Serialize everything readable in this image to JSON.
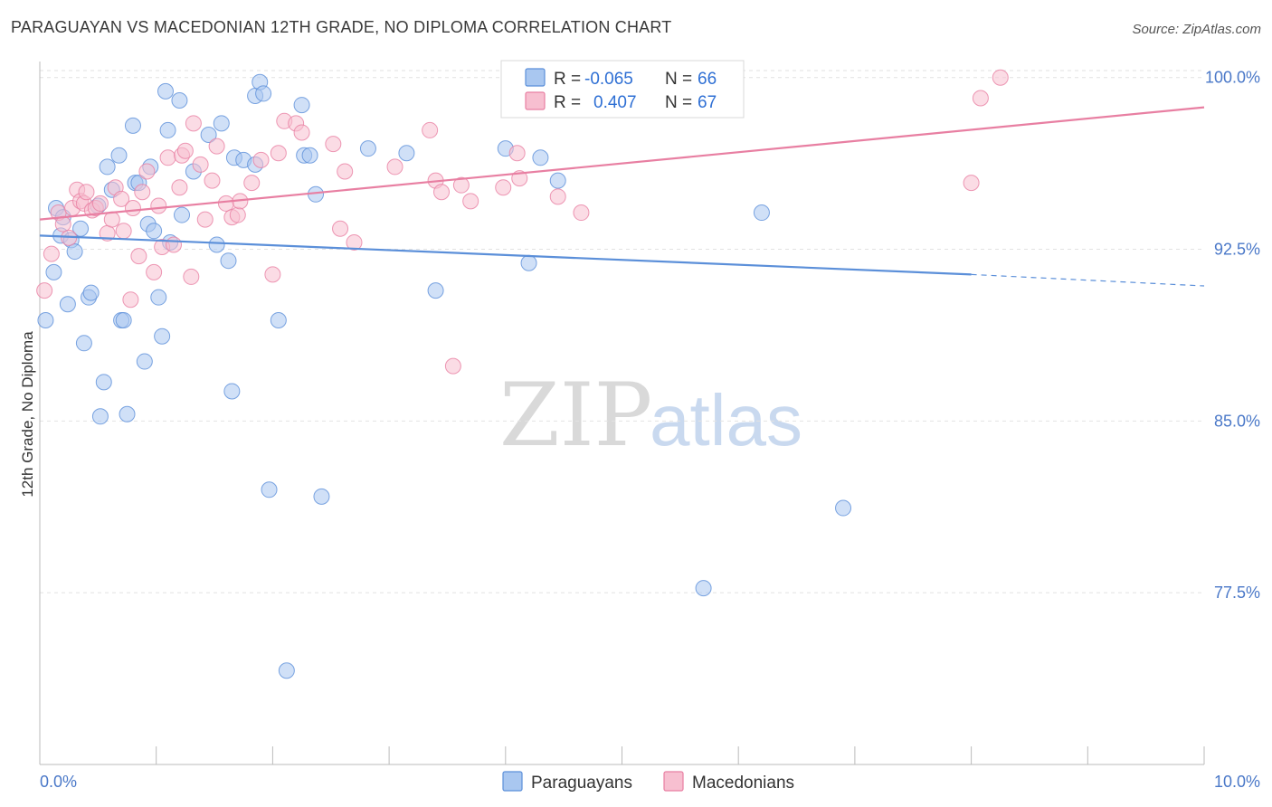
{
  "title": "PARAGUAYAN VS MACEDONIAN 12TH GRADE, NO DIPLOMA CORRELATION CHART",
  "source": "Source: ZipAtlas.com",
  "watermark": {
    "zip": "ZIP",
    "atlas": "atlas"
  },
  "legend": {
    "rows": [
      {
        "r_label": "R =",
        "r_value": "-0.065",
        "n_label": "N =",
        "n_value": "66",
        "color": "#a9c7f0",
        "stroke": "#5b8fd9"
      },
      {
        "r_label": "R =",
        "r_value": "0.407",
        "n_label": "N =",
        "n_value": "67",
        "color": "#f7bfd0",
        "stroke": "#e87fa2"
      }
    ]
  },
  "bottom_legend": [
    {
      "label": "Paraguayans",
      "color": "#a9c7f0",
      "stroke": "#5b8fd9"
    },
    {
      "label": "Macedonians",
      "color": "#f7bfd0",
      "stroke": "#e87fa2"
    }
  ],
  "chart_data": {
    "type": "scatter",
    "title": "PARAGUAYAN VS MACEDONIAN 12TH GRADE, NO DIPLOMA CORRELATION CHART",
    "xlabel": "",
    "ylabel": "12th Grade, No Diploma",
    "xlim": [
      0,
      10
    ],
    "ylim": [
      70.0,
      100.7
    ],
    "x_tick_labels": [
      {
        "value": 0,
        "label": "0.0%"
      },
      {
        "value": 10,
        "label": "10.0%"
      }
    ],
    "y_tick_labels": [
      {
        "value": 100,
        "label": "100.0%"
      },
      {
        "value": 92.5,
        "label": "92.5%"
      },
      {
        "value": 85,
        "label": "85.0%"
      },
      {
        "value": 77.5,
        "label": "77.5%"
      }
    ],
    "grid": true,
    "series": [
      {
        "name": "Paraguayans",
        "color": "#5b8fd9",
        "fill": "#a9c7f0",
        "trend": {
          "x0": 0,
          "y0": 93.1,
          "x1": 8.0,
          "y1": 91.4,
          "dashed_to_x": 10.0,
          "dashed_to_y": 90.9
        },
        "points": [
          [
            0.05,
            89.4
          ],
          [
            0.12,
            91.5
          ],
          [
            0.14,
            94.3
          ],
          [
            0.18,
            93.1
          ],
          [
            0.2,
            93.9
          ],
          [
            0.24,
            90.1
          ],
          [
            0.27,
            92.9
          ],
          [
            0.3,
            92.4
          ],
          [
            0.35,
            93.4
          ],
          [
            0.38,
            88.4
          ],
          [
            0.42,
            90.4
          ],
          [
            0.44,
            90.6
          ],
          [
            0.5,
            94.4
          ],
          [
            0.52,
            85.2
          ],
          [
            0.55,
            86.7
          ],
          [
            0.58,
            96.1
          ],
          [
            0.62,
            95.1
          ],
          [
            0.68,
            96.6
          ],
          [
            0.7,
            89.4
          ],
          [
            0.72,
            89.4
          ],
          [
            0.75,
            85.3
          ],
          [
            0.8,
            97.9
          ],
          [
            0.82,
            95.4
          ],
          [
            0.85,
            95.4
          ],
          [
            0.9,
            87.6
          ],
          [
            0.93,
            93.6
          ],
          [
            0.95,
            96.1
          ],
          [
            0.98,
            93.3
          ],
          [
            1.02,
            90.4
          ],
          [
            1.05,
            88.7
          ],
          [
            1.08,
            99.4
          ],
          [
            1.1,
            97.7
          ],
          [
            1.12,
            92.8
          ],
          [
            1.2,
            99.0
          ],
          [
            1.22,
            94.0
          ],
          [
            1.32,
            95.9
          ],
          [
            1.45,
            97.5
          ],
          [
            1.52,
            92.7
          ],
          [
            1.56,
            98.0
          ],
          [
            1.62,
            92.0
          ],
          [
            1.65,
            86.3
          ],
          [
            1.67,
            96.5
          ],
          [
            1.75,
            96.4
          ],
          [
            1.85,
            96.2
          ],
          [
            1.85,
            99.2
          ],
          [
            1.89,
            99.8
          ],
          [
            1.92,
            99.3
          ],
          [
            1.97,
            82.0
          ],
          [
            2.05,
            89.4
          ],
          [
            2.12,
            74.1
          ],
          [
            2.25,
            98.8
          ],
          [
            2.27,
            96.6
          ],
          [
            2.32,
            96.6
          ],
          [
            2.37,
            94.9
          ],
          [
            2.42,
            81.7
          ],
          [
            2.82,
            96.9
          ],
          [
            3.15,
            96.7
          ],
          [
            3.4,
            90.7
          ],
          [
            4.0,
            96.9
          ],
          [
            4.2,
            91.9
          ],
          [
            4.3,
            96.5
          ],
          [
            4.45,
            95.5
          ],
          [
            5.7,
            77.7
          ],
          [
            5.93,
            100.0
          ],
          [
            6.2,
            94.1
          ],
          [
            6.9,
            81.2
          ]
        ]
      },
      {
        "name": "Macedonians",
        "color": "#e87fa2",
        "fill": "#f7bfd0",
        "trend": {
          "x0": 0,
          "y0": 93.8,
          "x1": 10.0,
          "y1": 98.7
        },
        "points": [
          [
            0.04,
            90.7
          ],
          [
            0.1,
            92.3
          ],
          [
            0.16,
            94.1
          ],
          [
            0.2,
            93.6
          ],
          [
            0.25,
            93.0
          ],
          [
            0.28,
            94.3
          ],
          [
            0.32,
            95.1
          ],
          [
            0.35,
            94.6
          ],
          [
            0.38,
            94.5
          ],
          [
            0.4,
            95.0
          ],
          [
            0.45,
            94.2
          ],
          [
            0.48,
            94.3
          ],
          [
            0.52,
            94.5
          ],
          [
            0.58,
            93.2
          ],
          [
            0.62,
            93.8
          ],
          [
            0.65,
            95.2
          ],
          [
            0.7,
            94.7
          ],
          [
            0.72,
            93.3
          ],
          [
            0.78,
            90.3
          ],
          [
            0.8,
            94.3
          ],
          [
            0.85,
            92.2
          ],
          [
            0.88,
            95.0
          ],
          [
            0.92,
            95.9
          ],
          [
            0.98,
            91.5
          ],
          [
            1.02,
            94.4
          ],
          [
            1.05,
            92.6
          ],
          [
            1.1,
            96.5
          ],
          [
            1.15,
            92.7
          ],
          [
            1.2,
            95.2
          ],
          [
            1.22,
            96.6
          ],
          [
            1.25,
            96.8
          ],
          [
            1.3,
            91.3
          ],
          [
            1.32,
            98.0
          ],
          [
            1.38,
            96.2
          ],
          [
            1.42,
            93.8
          ],
          [
            1.48,
            95.5
          ],
          [
            1.52,
            97.0
          ],
          [
            1.6,
            94.5
          ],
          [
            1.65,
            93.9
          ],
          [
            1.7,
            94.0
          ],
          [
            1.72,
            94.6
          ],
          [
            1.82,
            95.4
          ],
          [
            1.9,
            96.4
          ],
          [
            2.0,
            91.4
          ],
          [
            2.05,
            96.7
          ],
          [
            2.1,
            98.1
          ],
          [
            2.2,
            98.0
          ],
          [
            2.25,
            97.6
          ],
          [
            2.52,
            97.1
          ],
          [
            2.58,
            93.4
          ],
          [
            2.62,
            95.9
          ],
          [
            2.7,
            92.8
          ],
          [
            3.05,
            96.1
          ],
          [
            3.35,
            97.7
          ],
          [
            3.4,
            95.5
          ],
          [
            3.45,
            95.0
          ],
          [
            3.55,
            87.4
          ],
          [
            3.62,
            95.3
          ],
          [
            3.7,
            94.6
          ],
          [
            3.98,
            95.2
          ],
          [
            4.1,
            96.7
          ],
          [
            4.12,
            95.6
          ],
          [
            4.45,
            94.8
          ],
          [
            4.65,
            94.1
          ],
          [
            8.0,
            95.4
          ],
          [
            8.08,
            99.1
          ],
          [
            8.25,
            100.0
          ]
        ]
      }
    ]
  }
}
